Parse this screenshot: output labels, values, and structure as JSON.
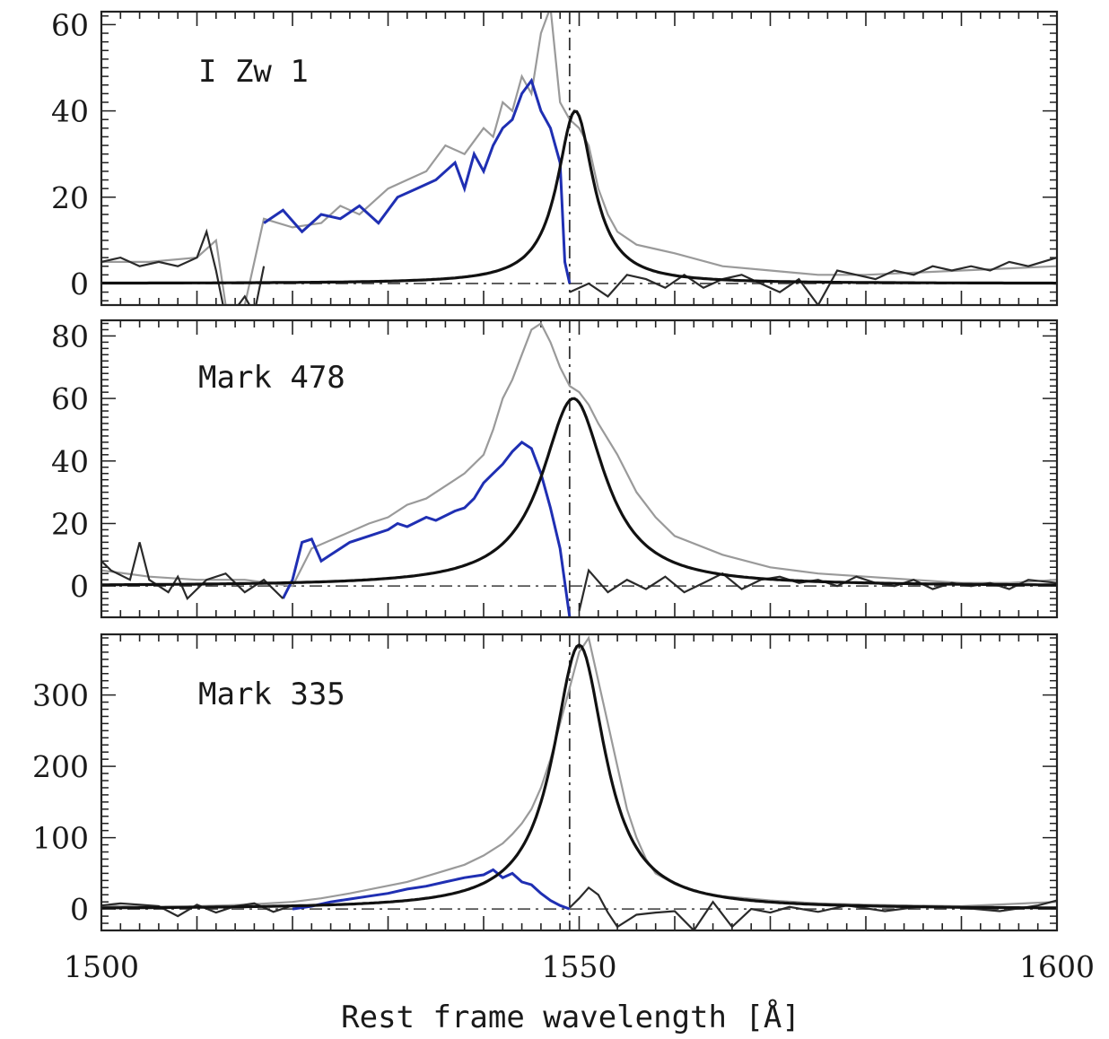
{
  "chart_data": {
    "type": "line",
    "xlabel": "Rest frame wavelength [Å]",
    "xlim": [
      1500,
      1600
    ],
    "x_ticks": [
      1500,
      1550,
      1600
    ],
    "vertical_reference_x": 1549,
    "colors": {
      "observed": "#9a9a9a",
      "blue_wing": "#1f2fb3",
      "model": "#111111",
      "residual": "#2a2a2a"
    },
    "panels": [
      {
        "label": "I Zw 1",
        "ylim": [
          -5,
          63
        ],
        "y_ticks": [
          0,
          20,
          40,
          60
        ],
        "lorentzian": {
          "center": 1549.6,
          "amplitude": 40,
          "hwhm": 2.3
        },
        "observed": [
          [
            1500,
            5
          ],
          [
            1505,
            5
          ],
          [
            1510,
            6
          ],
          [
            1512,
            10
          ],
          [
            1513,
            -5
          ],
          [
            1515,
            -5
          ],
          [
            1517,
            15
          ],
          [
            1520,
            13
          ],
          [
            1523,
            14
          ],
          [
            1525,
            18
          ],
          [
            1527,
            16
          ],
          [
            1530,
            22
          ],
          [
            1532,
            24
          ],
          [
            1534,
            26
          ],
          [
            1536,
            32
          ],
          [
            1538,
            30
          ],
          [
            1540,
            36
          ],
          [
            1541,
            34
          ],
          [
            1542,
            42
          ],
          [
            1543,
            40
          ],
          [
            1544,
            48
          ],
          [
            1545,
            44
          ],
          [
            1546,
            58
          ],
          [
            1547,
            64
          ],
          [
            1548,
            42
          ],
          [
            1549,
            38
          ],
          [
            1550,
            36
          ],
          [
            1551,
            32
          ],
          [
            1552,
            22
          ],
          [
            1553,
            16
          ],
          [
            1554,
            12
          ],
          [
            1556,
            9
          ],
          [
            1558,
            8
          ],
          [
            1560,
            7
          ],
          [
            1565,
            4
          ],
          [
            1570,
            3
          ],
          [
            1575,
            2
          ],
          [
            1580,
            2
          ],
          [
            1590,
            3
          ],
          [
            1600,
            4
          ]
        ],
        "blue_wing": [
          [
            1517,
            14
          ],
          [
            1519,
            17
          ],
          [
            1521,
            12
          ],
          [
            1523,
            16
          ],
          [
            1525,
            15
          ],
          [
            1527,
            18
          ],
          [
            1529,
            14
          ],
          [
            1531,
            20
          ],
          [
            1533,
            22
          ],
          [
            1535,
            24
          ],
          [
            1537,
            28
          ],
          [
            1538,
            22
          ],
          [
            1539,
            30
          ],
          [
            1540,
            26
          ],
          [
            1541,
            32
          ],
          [
            1542,
            36
          ],
          [
            1543,
            38
          ],
          [
            1544,
            44
          ],
          [
            1545,
            47
          ],
          [
            1546,
            40
          ],
          [
            1547,
            36
          ],
          [
            1548,
            28
          ],
          [
            1548.5,
            5
          ],
          [
            1549,
            0
          ]
        ],
        "residual": [
          [
            1500,
            5
          ],
          [
            1502,
            6
          ],
          [
            1504,
            4
          ],
          [
            1506,
            5
          ],
          [
            1508,
            4
          ],
          [
            1510,
            6
          ],
          [
            1511,
            12
          ],
          [
            1512,
            3
          ],
          [
            1513,
            -8
          ],
          [
            1514,
            -6
          ],
          [
            1515,
            -3
          ],
          [
            1516,
            -7
          ],
          [
            1517,
            4
          ],
          [
            1549,
            -2
          ],
          [
            1551,
            0
          ],
          [
            1553,
            -3
          ],
          [
            1555,
            2
          ],
          [
            1557,
            1
          ],
          [
            1559,
            -1
          ],
          [
            1561,
            2
          ],
          [
            1563,
            -1
          ],
          [
            1565,
            1
          ],
          [
            1567,
            2
          ],
          [
            1569,
            0
          ],
          [
            1571,
            -2
          ],
          [
            1573,
            1
          ],
          [
            1575,
            -5
          ],
          [
            1577,
            3
          ],
          [
            1579,
            2
          ],
          [
            1581,
            1
          ],
          [
            1583,
            3
          ],
          [
            1585,
            2
          ],
          [
            1587,
            4
          ],
          [
            1589,
            3
          ],
          [
            1591,
            4
          ],
          [
            1593,
            3
          ],
          [
            1595,
            5
          ],
          [
            1597,
            4
          ],
          [
            1600,
            6
          ]
        ]
      },
      {
        "label": "Mark 478",
        "ylim": [
          -10,
          85
        ],
        "y_ticks": [
          0,
          20,
          40,
          60,
          80
        ],
        "lorentzian": {
          "center": 1549.4,
          "amplitude": 60,
          "hwhm": 4.0
        },
        "observed": [
          [
            1500,
            5
          ],
          [
            1505,
            3
          ],
          [
            1510,
            2
          ],
          [
            1515,
            2
          ],
          [
            1520,
            0
          ],
          [
            1522,
            12
          ],
          [
            1525,
            16
          ],
          [
            1528,
            20
          ],
          [
            1530,
            22
          ],
          [
            1532,
            26
          ],
          [
            1534,
            28
          ],
          [
            1536,
            32
          ],
          [
            1538,
            36
          ],
          [
            1540,
            42
          ],
          [
            1541,
            50
          ],
          [
            1542,
            60
          ],
          [
            1543,
            66
          ],
          [
            1544,
            74
          ],
          [
            1545,
            82
          ],
          [
            1546,
            84
          ],
          [
            1547,
            78
          ],
          [
            1548,
            70
          ],
          [
            1549,
            64
          ],
          [
            1550,
            62
          ],
          [
            1551,
            58
          ],
          [
            1552,
            52
          ],
          [
            1554,
            42
          ],
          [
            1556,
            30
          ],
          [
            1558,
            22
          ],
          [
            1560,
            16
          ],
          [
            1565,
            10
          ],
          [
            1570,
            6
          ],
          [
            1575,
            4
          ],
          [
            1580,
            3
          ],
          [
            1585,
            2
          ],
          [
            1590,
            1
          ],
          [
            1595,
            1
          ],
          [
            1600,
            2
          ]
        ],
        "blue_wing": [
          [
            1519,
            -4
          ],
          [
            1520,
            2
          ],
          [
            1521,
            14
          ],
          [
            1522,
            15
          ],
          [
            1523,
            8
          ],
          [
            1524,
            10
          ],
          [
            1526,
            14
          ],
          [
            1528,
            16
          ],
          [
            1530,
            18
          ],
          [
            1531,
            20
          ],
          [
            1532,
            19
          ],
          [
            1534,
            22
          ],
          [
            1535,
            21
          ],
          [
            1537,
            24
          ],
          [
            1538,
            25
          ],
          [
            1539,
            28
          ],
          [
            1540,
            33
          ],
          [
            1541,
            36
          ],
          [
            1542,
            39
          ],
          [
            1543,
            43
          ],
          [
            1544,
            46
          ],
          [
            1545,
            44
          ],
          [
            1546,
            36
          ],
          [
            1547,
            25
          ],
          [
            1548,
            12
          ],
          [
            1549,
            -10
          ]
        ],
        "residual": [
          [
            1500,
            8
          ],
          [
            1501,
            5
          ],
          [
            1503,
            2
          ],
          [
            1504,
            14
          ],
          [
            1505,
            2
          ],
          [
            1507,
            -2
          ],
          [
            1508,
            3
          ],
          [
            1509,
            -4
          ],
          [
            1511,
            2
          ],
          [
            1513,
            4
          ],
          [
            1515,
            -2
          ],
          [
            1517,
            2
          ],
          [
            1519,
            -4
          ],
          [
            1550,
            -8
          ],
          [
            1551,
            5
          ],
          [
            1553,
            -2
          ],
          [
            1555,
            2
          ],
          [
            1557,
            -1
          ],
          [
            1559,
            3
          ],
          [
            1561,
            -2
          ],
          [
            1563,
            1
          ],
          [
            1565,
            4
          ],
          [
            1567,
            -1
          ],
          [
            1569,
            2
          ],
          [
            1571,
            3
          ],
          [
            1573,
            1
          ],
          [
            1575,
            2
          ],
          [
            1577,
            0
          ],
          [
            1579,
            3
          ],
          [
            1581,
            1
          ],
          [
            1583,
            0
          ],
          [
            1585,
            2
          ],
          [
            1587,
            -1
          ],
          [
            1589,
            1
          ],
          [
            1591,
            0
          ],
          [
            1593,
            1
          ],
          [
            1595,
            -1
          ],
          [
            1597,
            2
          ],
          [
            1600,
            1
          ]
        ]
      },
      {
        "label": "Mark 335",
        "ylim": [
          -30,
          385
        ],
        "y_ticks": [
          0,
          100,
          200,
          300
        ],
        "lorentzian": {
          "center": 1550.0,
          "amplitude": 370,
          "hwhm": 3.3
        },
        "observed": [
          [
            1500,
            5
          ],
          [
            1505,
            3
          ],
          [
            1510,
            4
          ],
          [
            1515,
            6
          ],
          [
            1520,
            10
          ],
          [
            1523,
            15
          ],
          [
            1526,
            22
          ],
          [
            1529,
            30
          ],
          [
            1532,
            38
          ],
          [
            1535,
            50
          ],
          [
            1538,
            62
          ],
          [
            1540,
            75
          ],
          [
            1542,
            92
          ],
          [
            1543,
            105
          ],
          [
            1544,
            120
          ],
          [
            1545,
            140
          ],
          [
            1546,
            170
          ],
          [
            1547,
            210
          ],
          [
            1548,
            260
          ],
          [
            1549,
            310
          ],
          [
            1550,
            360
          ],
          [
            1551,
            380
          ],
          [
            1552,
            320
          ],
          [
            1553,
            260
          ],
          [
            1554,
            200
          ],
          [
            1555,
            140
          ],
          [
            1556,
            100
          ],
          [
            1557,
            70
          ],
          [
            1558,
            50
          ],
          [
            1560,
            35
          ],
          [
            1562,
            25
          ],
          [
            1565,
            18
          ],
          [
            1570,
            12
          ],
          [
            1575,
            8
          ],
          [
            1580,
            6
          ],
          [
            1590,
            4
          ],
          [
            1600,
            10
          ]
        ],
        "blue_wing": [
          [
            1520,
            0
          ],
          [
            1522,
            4
          ],
          [
            1524,
            10
          ],
          [
            1526,
            14
          ],
          [
            1528,
            18
          ],
          [
            1530,
            22
          ],
          [
            1532,
            28
          ],
          [
            1534,
            32
          ],
          [
            1536,
            38
          ],
          [
            1538,
            44
          ],
          [
            1540,
            48
          ],
          [
            1541,
            55
          ],
          [
            1542,
            44
          ],
          [
            1543,
            50
          ],
          [
            1544,
            38
          ],
          [
            1545,
            34
          ],
          [
            1546,
            22
          ],
          [
            1547,
            12
          ],
          [
            1548,
            5
          ],
          [
            1549,
            0
          ]
        ],
        "residual": [
          [
            1500,
            5
          ],
          [
            1502,
            8
          ],
          [
            1504,
            6
          ],
          [
            1506,
            4
          ],
          [
            1508,
            -10
          ],
          [
            1510,
            6
          ],
          [
            1512,
            -5
          ],
          [
            1514,
            4
          ],
          [
            1516,
            8
          ],
          [
            1518,
            -4
          ],
          [
            1520,
            5
          ],
          [
            1549,
            2
          ],
          [
            1550,
            15
          ],
          [
            1551,
            30
          ],
          [
            1552,
            20
          ],
          [
            1553,
            -5
          ],
          [
            1554,
            -25
          ],
          [
            1556,
            -8
          ],
          [
            1558,
            -5
          ],
          [
            1560,
            -3
          ],
          [
            1562,
            -30
          ],
          [
            1564,
            10
          ],
          [
            1566,
            -25
          ],
          [
            1568,
            0
          ],
          [
            1570,
            -5
          ],
          [
            1572,
            3
          ],
          [
            1575,
            -4
          ],
          [
            1578,
            5
          ],
          [
            1582,
            -3
          ],
          [
            1586,
            4
          ],
          [
            1590,
            2
          ],
          [
            1594,
            -3
          ],
          [
            1598,
            5
          ],
          [
            1600,
            12
          ]
        ]
      }
    ]
  }
}
